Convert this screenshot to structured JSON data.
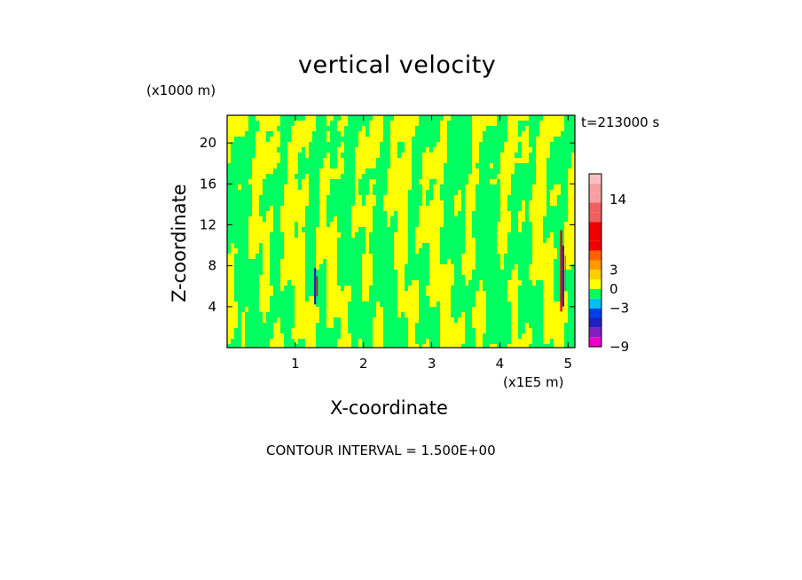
{
  "chart_data": {
    "type": "heatmap",
    "title": "vertical velocity",
    "xlabel": "X-coordinate",
    "ylabel": "Z-coordinate",
    "x_unit": "(x1E5 m)",
    "z_unit": "(x1000 m)",
    "time_label": "t=213000 s",
    "contour_interval_text": "CONTOUR INTERVAL = 1.500E+00",
    "xlim": [
      0,
      5.1
    ],
    "ylim": [
      0,
      22.7
    ],
    "x_ticks": [
      1,
      2,
      3,
      4,
      5
    ],
    "y_ticks": [
      4,
      8,
      12,
      16,
      20
    ],
    "colorbar": {
      "levels": [
        -9,
        -7.5,
        -6,
        -4.5,
        -3,
        -1.5,
        0,
        1.5,
        3,
        4.5,
        6,
        7.5,
        9,
        10.5,
        12,
        13.5,
        15,
        16.5,
        18
      ],
      "colors": [
        "#e800c8",
        "#8020c0",
        "#2020c0",
        "#0040e8",
        "#00c0f0",
        "#00ff60",
        "#ffff00",
        "#ffd000",
        "#ff9a00",
        "#ff6000",
        "#ee0000",
        "#ee0000",
        "#ee0000",
        "#ee6060",
        "#ee6060",
        "#f5a0a0",
        "#f5a0a0",
        "#f8c0c0"
      ],
      "tick_labels": [
        {
          "value": 14,
          "label": "14"
        },
        {
          "value": 3,
          "label": "3"
        },
        {
          "value": 0,
          "label": "0"
        },
        {
          "value": -3,
          "label": "−3"
        },
        {
          "value": -9,
          "label": "−9"
        }
      ]
    },
    "dominant_fields": {
      "positive_weak": "#ffff00",
      "negative_weak": "#00ff60"
    }
  }
}
